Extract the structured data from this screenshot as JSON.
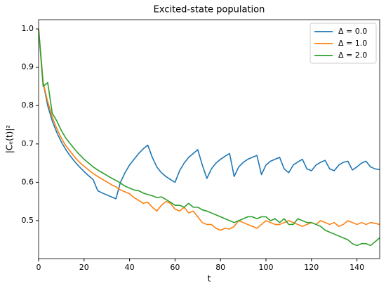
{
  "chart_data": {
    "type": "line",
    "title": "Excited-state population",
    "xlabel": "t",
    "ylabel": "|Cₑ(t)|²",
    "x": [
      0,
      2,
      4,
      6,
      8,
      10,
      12,
      14,
      16,
      18,
      20,
      22,
      24,
      26,
      28,
      30,
      32,
      34,
      36,
      38,
      40,
      42,
      44,
      46,
      48,
      50,
      52,
      54,
      56,
      58,
      60,
      62,
      64,
      66,
      68,
      70,
      72,
      74,
      76,
      78,
      80,
      82,
      84,
      86,
      88,
      90,
      92,
      94,
      96,
      98,
      100,
      102,
      104,
      106,
      108,
      110,
      112,
      114,
      116,
      118,
      120,
      122,
      124,
      126,
      128,
      130,
      132,
      134,
      136,
      138,
      140,
      142,
      144,
      146,
      148,
      150
    ],
    "series": [
      {
        "name": "Δ = 0.0",
        "color": "#1f77b4",
        "values": [
          1.0,
          0.86,
          0.8,
          0.76,
          0.73,
          0.705,
          0.685,
          0.668,
          0.653,
          0.64,
          0.628,
          0.617,
          0.607,
          0.578,
          0.572,
          0.567,
          0.562,
          0.557,
          0.6,
          0.625,
          0.645,
          0.66,
          0.675,
          0.687,
          0.697,
          0.665,
          0.64,
          0.625,
          0.615,
          0.607,
          0.6,
          0.63,
          0.65,
          0.665,
          0.675,
          0.685,
          0.645,
          0.61,
          0.635,
          0.65,
          0.66,
          0.668,
          0.675,
          0.615,
          0.64,
          0.652,
          0.66,
          0.665,
          0.67,
          0.62,
          0.645,
          0.655,
          0.66,
          0.665,
          0.635,
          0.625,
          0.645,
          0.653,
          0.66,
          0.635,
          0.63,
          0.645,
          0.652,
          0.657,
          0.635,
          0.63,
          0.645,
          0.652,
          0.655,
          0.632,
          0.64,
          0.65,
          0.655,
          0.64,
          0.635,
          0.633
        ]
      },
      {
        "name": "Δ = 1.0",
        "color": "#ff7f0e",
        "values": [
          1.0,
          0.86,
          0.81,
          0.77,
          0.74,
          0.715,
          0.695,
          0.68,
          0.665,
          0.652,
          0.642,
          0.632,
          0.623,
          0.615,
          0.608,
          0.601,
          0.594,
          0.588,
          0.58,
          0.575,
          0.57,
          0.56,
          0.553,
          0.545,
          0.548,
          0.535,
          0.525,
          0.54,
          0.55,
          0.545,
          0.53,
          0.525,
          0.535,
          0.52,
          0.525,
          0.51,
          0.495,
          0.49,
          0.49,
          0.48,
          0.475,
          0.48,
          0.478,
          0.485,
          0.5,
          0.495,
          0.49,
          0.485,
          0.48,
          0.49,
          0.5,
          0.495,
          0.49,
          0.49,
          0.495,
          0.5,
          0.495,
          0.49,
          0.485,
          0.49,
          0.495,
          0.49,
          0.5,
          0.495,
          0.49,
          0.495,
          0.485,
          0.49,
          0.5,
          0.495,
          0.49,
          0.495,
          0.49,
          0.495,
          0.493,
          0.49
        ]
      },
      {
        "name": "Δ = 2.0",
        "color": "#2ca02c",
        "values": [
          1.0,
          0.85,
          0.86,
          0.78,
          0.76,
          0.735,
          0.715,
          0.7,
          0.685,
          0.672,
          0.66,
          0.65,
          0.64,
          0.632,
          0.625,
          0.618,
          0.611,
          0.605,
          0.598,
          0.59,
          0.585,
          0.58,
          0.578,
          0.572,
          0.568,
          0.565,
          0.56,
          0.562,
          0.555,
          0.548,
          0.54,
          0.54,
          0.535,
          0.545,
          0.535,
          0.535,
          0.528,
          0.525,
          0.52,
          0.515,
          0.51,
          0.505,
          0.5,
          0.495,
          0.5,
          0.505,
          0.51,
          0.51,
          0.505,
          0.51,
          0.51,
          0.5,
          0.505,
          0.495,
          0.505,
          0.49,
          0.49,
          0.505,
          0.5,
          0.495,
          0.495,
          0.49,
          0.485,
          0.475,
          0.47,
          0.465,
          0.46,
          0.455,
          0.45,
          0.44,
          0.435,
          0.44,
          0.44,
          0.435,
          0.445,
          0.455
        ]
      }
    ],
    "xlim": [
      0,
      150
    ],
    "ylim": [
      0.401,
      1.024
    ],
    "xticks": [
      0,
      20,
      40,
      60,
      80,
      100,
      120,
      140
    ],
    "yticks": [
      0.5,
      0.6,
      0.7,
      0.8,
      0.9,
      {
        "value": 1.0,
        "label": "1.0"
      }
    ],
    "legend": "upper right"
  }
}
